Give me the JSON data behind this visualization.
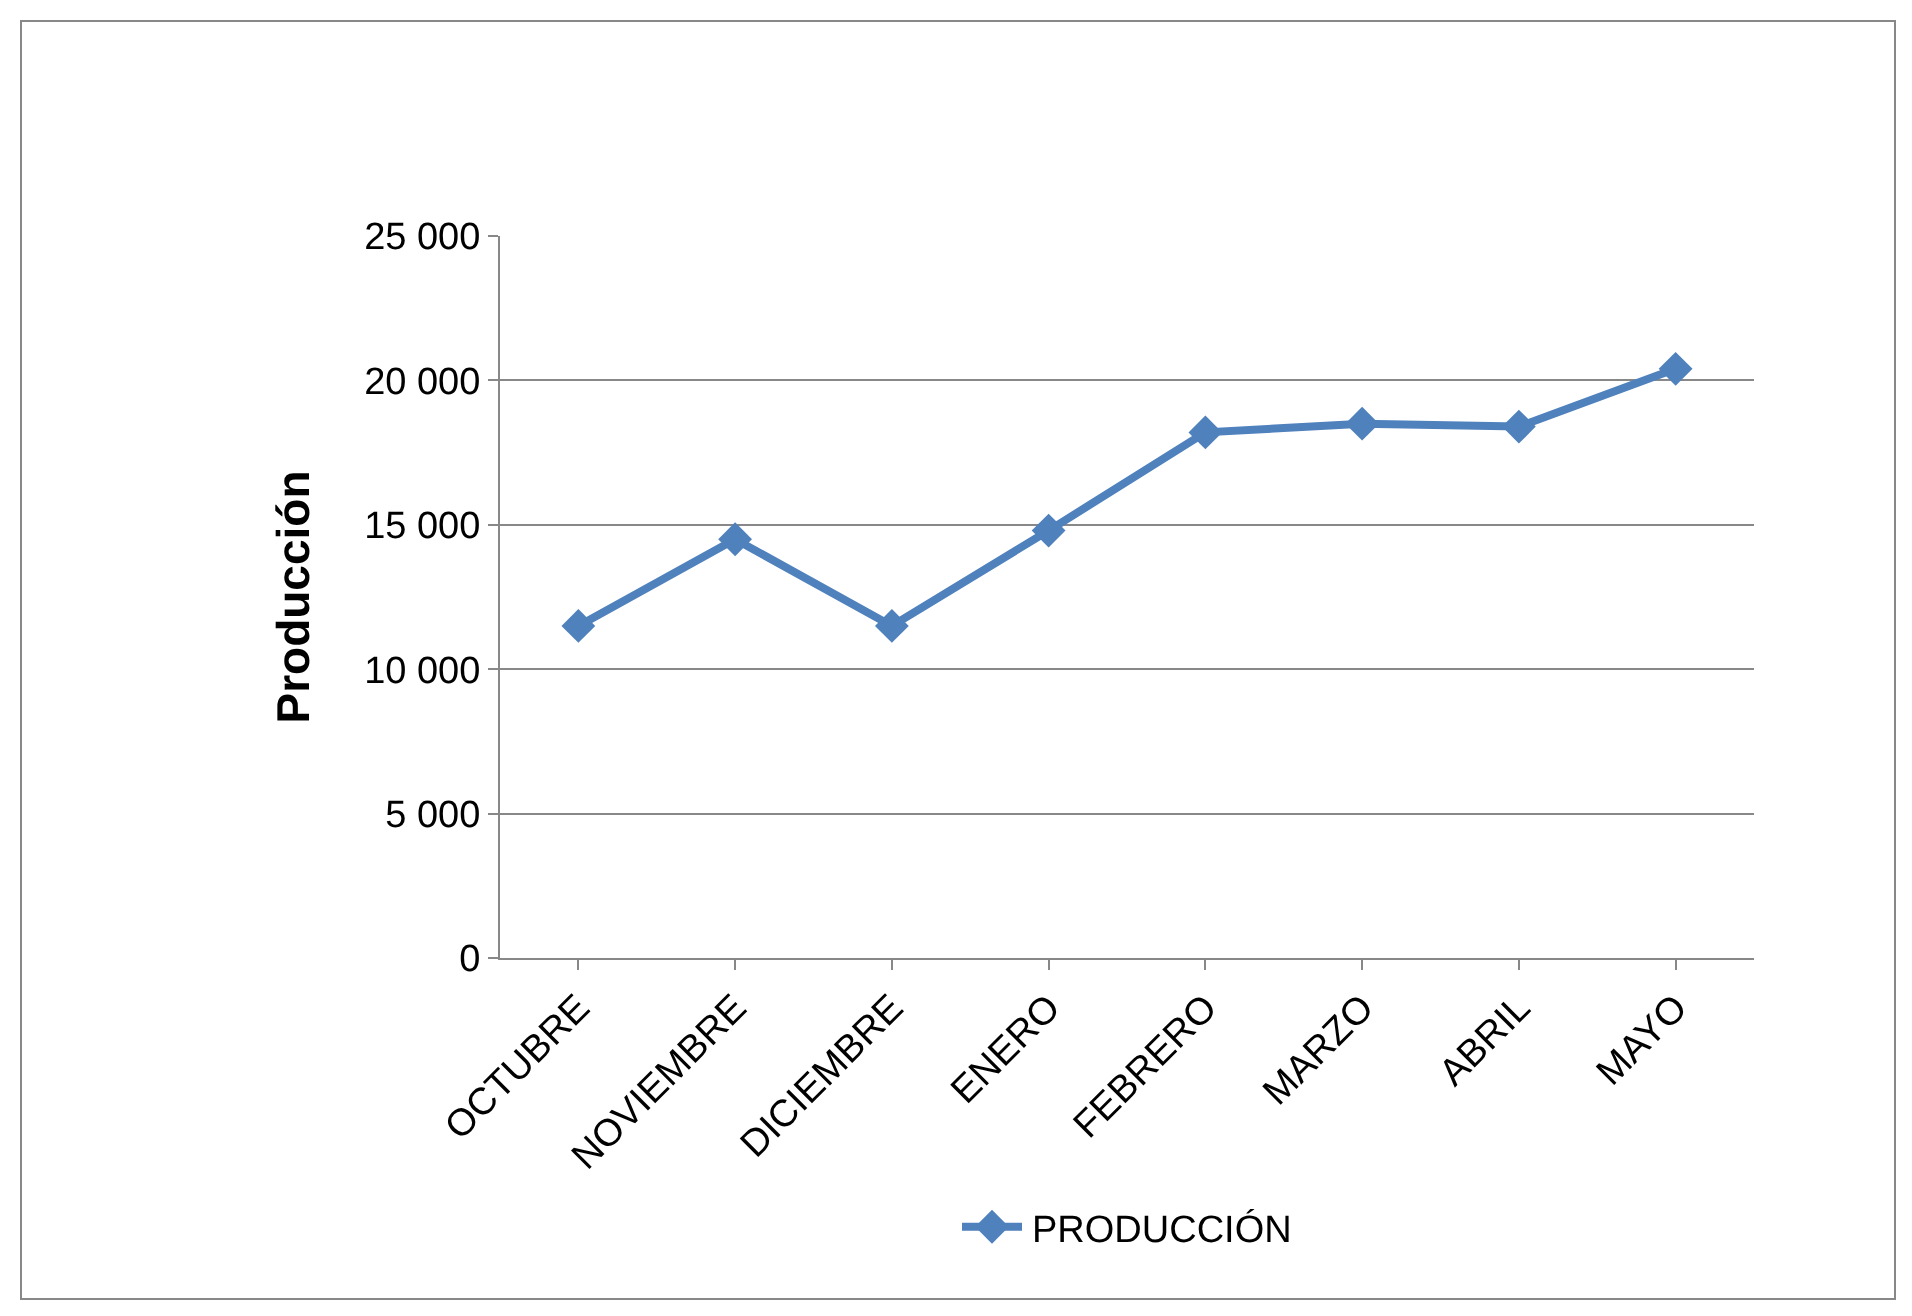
{
  "chart_data": {
    "type": "line",
    "ylabel": "Producción",
    "categories": [
      "OCTUBRE",
      "NOVIEMBRE",
      "DICIEMBRE",
      "ENERO",
      "FEBRERO",
      "MARZO",
      "ABRIL",
      "MAYO"
    ],
    "series": [
      {
        "name": "PRODUCCIÓN",
        "color": "#4f81bd",
        "values": [
          11500,
          14500,
          11500,
          14800,
          18200,
          18500,
          18400,
          20400
        ]
      }
    ],
    "ylim": [
      0,
      25000
    ],
    "yticks": [
      0,
      {
        "value": 5000,
        "label": "5 000"
      },
      {
        "value": 10000,
        "label": "10 000"
      },
      {
        "value": 15000,
        "label": "15 000"
      },
      {
        "value": 20000,
        "label": "20 000"
      },
      {
        "value": 25000,
        "label": "25 000"
      }
    ],
    "grid": "y",
    "legend": "bottom",
    "marker": "diamond",
    "line_style": "solid"
  }
}
